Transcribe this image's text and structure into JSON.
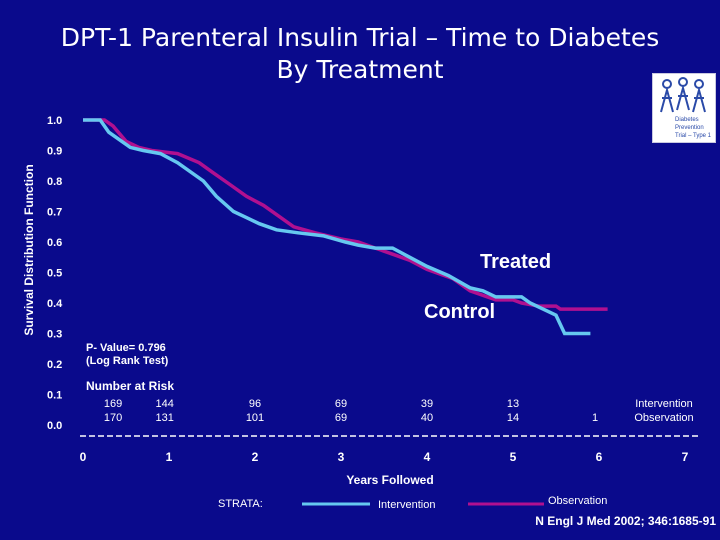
{
  "title_line1": "DPT-1 Parenteral Insulin Trial – Time to Diabetes",
  "title_line2": "By Treatment",
  "logo": {
    "icon": "dpt-1-logo-icon",
    "text": [
      "Diabetes",
      "Prevention",
      "Trial – Type 1"
    ]
  },
  "source": "N Engl J Med 2002; 346:1685-91",
  "chart_data": {
    "type": "line",
    "title": "DPT-1 Parenteral Insulin Trial – Time to Diabetes By Treatment",
    "ylabel": "Survival Distribution Function",
    "xlabel": "Years Followed",
    "xlim": [
      0,
      7
    ],
    "ylim": [
      0,
      1
    ],
    "x_ticks": [
      "0",
      "1",
      "2",
      "3",
      "4",
      "5",
      "6",
      "7"
    ],
    "y_ticks": [
      "0.0",
      "0.1",
      "0.2",
      "0.3",
      "0.4",
      "0.5",
      "0.6",
      "0.7",
      "0.8",
      "0.9",
      "1.0"
    ],
    "series": [
      {
        "name": "Intervention",
        "color": "#66c8f0",
        "points": [
          [
            0.0,
            1.0
          ],
          [
            0.2,
            1.0
          ],
          [
            0.3,
            0.96
          ],
          [
            0.45,
            0.93
          ],
          [
            0.55,
            0.91
          ],
          [
            0.7,
            0.9
          ],
          [
            0.9,
            0.89
          ],
          [
            1.1,
            0.86
          ],
          [
            1.4,
            0.8
          ],
          [
            1.55,
            0.75
          ],
          [
            1.75,
            0.7
          ],
          [
            1.9,
            0.68
          ],
          [
            2.05,
            0.66
          ],
          [
            2.25,
            0.64
          ],
          [
            2.5,
            0.63
          ],
          [
            2.8,
            0.62
          ],
          [
            3.05,
            0.6
          ],
          [
            3.2,
            0.59
          ],
          [
            3.4,
            0.58
          ],
          [
            3.6,
            0.58
          ],
          [
            3.8,
            0.55
          ],
          [
            4.0,
            0.52
          ],
          [
            4.25,
            0.49
          ],
          [
            4.5,
            0.45
          ],
          [
            4.65,
            0.44
          ],
          [
            4.8,
            0.42
          ],
          [
            5.1,
            0.42
          ],
          [
            5.2,
            0.4
          ],
          [
            5.5,
            0.36
          ],
          [
            5.6,
            0.3
          ],
          [
            5.9,
            0.3
          ]
        ]
      },
      {
        "name": "Observation",
        "color": "#b01090",
        "points": [
          [
            0.0,
            1.0
          ],
          [
            0.25,
            1.0
          ],
          [
            0.35,
            0.98
          ],
          [
            0.5,
            0.93
          ],
          [
            0.65,
            0.91
          ],
          [
            0.8,
            0.9
          ],
          [
            1.1,
            0.89
          ],
          [
            1.35,
            0.86
          ],
          [
            1.5,
            0.83
          ],
          [
            1.7,
            0.79
          ],
          [
            1.9,
            0.75
          ],
          [
            2.1,
            0.72
          ],
          [
            2.25,
            0.69
          ],
          [
            2.45,
            0.65
          ],
          [
            2.7,
            0.63
          ],
          [
            3.0,
            0.61
          ],
          [
            3.2,
            0.6
          ],
          [
            3.4,
            0.58
          ],
          [
            3.6,
            0.56
          ],
          [
            3.8,
            0.54
          ],
          [
            4.0,
            0.51
          ],
          [
            4.3,
            0.48
          ],
          [
            4.5,
            0.44
          ],
          [
            4.8,
            0.41
          ],
          [
            5.0,
            0.41
          ],
          [
            5.1,
            0.4
          ],
          [
            5.3,
            0.39
          ],
          [
            5.5,
            0.39
          ],
          [
            5.55,
            0.38
          ],
          [
            6.1,
            0.38
          ]
        ]
      }
    ],
    "annotations": {
      "treated": "Treated",
      "control": "Control",
      "pvalue_line1": "P- Value= 0.796",
      "pvalue_line2": "(Log Rank Test)"
    },
    "number_at_risk": {
      "title": "Number at Risk",
      "rows": [
        {
          "group": "Intervention",
          "values": [
            {
              "x": 0.35,
              "v": "169"
            },
            {
              "x": 0.95,
              "v": "144"
            },
            {
              "x": 2.0,
              "v": "96"
            },
            {
              "x": 3.0,
              "v": "69"
            },
            {
              "x": 4.0,
              "v": "39"
            },
            {
              "x": 5.0,
              "v": "13"
            }
          ]
        },
        {
          "group": "Observation",
          "values": [
            {
              "x": 0.35,
              "v": "170"
            },
            {
              "x": 0.95,
              "v": "131"
            },
            {
              "x": 2.0,
              "v": "101"
            },
            {
              "x": 3.0,
              "v": "69"
            },
            {
              "x": 4.0,
              "v": "40"
            },
            {
              "x": 5.0,
              "v": "14"
            }
          ]
        }
      ],
      "last_single": {
        "x": 6.0,
        "v": "1"
      },
      "group_label_1": "Intervention",
      "group_label_2": "Observation"
    },
    "legend": {
      "strata_label": "STRATA:",
      "intervention": "Intervention",
      "observation": "Observation",
      "placement": "bottom"
    }
  }
}
